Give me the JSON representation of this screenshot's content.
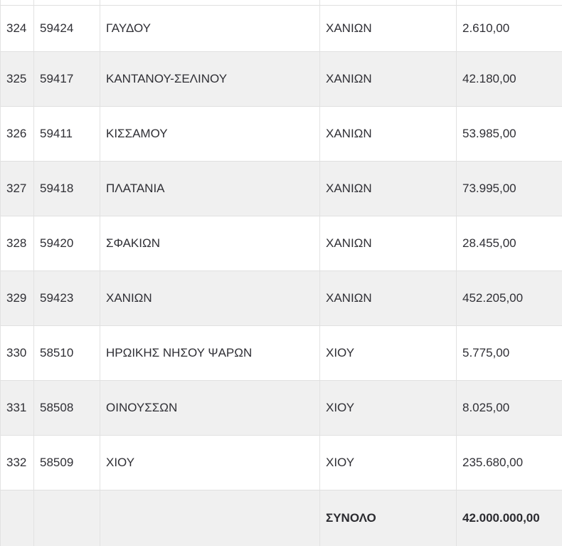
{
  "table": {
    "rows": [
      {
        "num": "324",
        "code": "59424",
        "name": "ΓΑΥΔΟΥ",
        "prefecture": "ΧΑΝΙΩΝ",
        "amount": "2.610,00"
      },
      {
        "num": "325",
        "code": "59417",
        "name": "ΚΑΝΤΑΝΟΥ-ΣΕΛΙΝΟΥ",
        "prefecture": "ΧΑΝΙΩΝ",
        "amount": "42.180,00"
      },
      {
        "num": "326",
        "code": "59411",
        "name": "ΚΙΣΣΑΜΟΥ",
        "prefecture": "ΧΑΝΙΩΝ",
        "amount": "53.985,00"
      },
      {
        "num": "327",
        "code": "59418",
        "name": "ΠΛΑΤΑΝΙΑ",
        "prefecture": "ΧΑΝΙΩΝ",
        "amount": "73.995,00"
      },
      {
        "num": "328",
        "code": "59420",
        "name": "ΣΦΑΚΙΩΝ",
        "prefecture": "ΧΑΝΙΩΝ",
        "amount": "28.455,00"
      },
      {
        "num": "329",
        "code": "59423",
        "name": "ΧΑΝΙΩΝ",
        "prefecture": "ΧΑΝΙΩΝ",
        "amount": "452.205,00"
      },
      {
        "num": "330",
        "code": "58510",
        "name": "ΗΡΩΙΚΗΣ ΝΗΣΟΥ ΨΑΡΩΝ",
        "prefecture": "ΧΙΟΥ",
        "amount": "5.775,00"
      },
      {
        "num": "331",
        "code": "58508",
        "name": "ΟΙΝΟΥΣΣΩΝ",
        "prefecture": "ΧΙΟΥ",
        "amount": "8.025,00"
      },
      {
        "num": "332",
        "code": "58509",
        "name": "ΧΙΟΥ",
        "prefecture": "ΧΙΟΥ",
        "amount": "235.680,00"
      }
    ],
    "total": {
      "label": "ΣΥΝΟΛΟ",
      "amount": "42.000.000,00"
    }
  },
  "colors": {
    "row_alt_background": "#f0f0f0",
    "border": "#e2e2e2",
    "text": "#2f2f35"
  }
}
